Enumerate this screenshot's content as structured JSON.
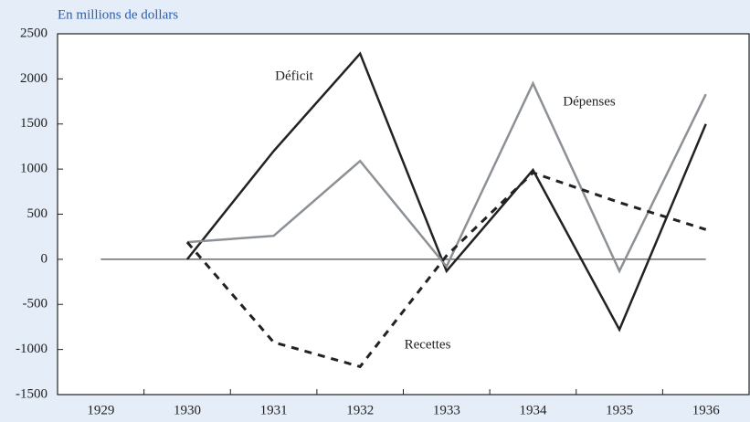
{
  "chart_data": {
    "type": "line",
    "subtitle": "En millions de dollars",
    "categories": [
      "1929",
      "1930",
      "1931",
      "1932",
      "1933",
      "1934",
      "1935",
      "1936"
    ],
    "series": [
      {
        "name": "Déficit",
        "color": "#222222",
        "values": [
          null,
          0,
          1200,
          2280,
          -130,
          990,
          -780,
          1500
        ]
      },
      {
        "name": "Dépenses",
        "color": "#8c9196",
        "values": [
          null,
          190,
          260,
          1090,
          -80,
          1950,
          -130,
          1830
        ]
      },
      {
        "name": "Recettes",
        "color": "#222222",
        "dashed": true,
        "values": [
          null,
          190,
          -920,
          -1190,
          40,
          960,
          630,
          330
        ]
      }
    ],
    "ylim": [
      -1500,
      2500
    ],
    "yticks": [
      -1500,
      -1000,
      -500,
      0,
      500,
      1000,
      1500,
      2000,
      2500
    ]
  }
}
